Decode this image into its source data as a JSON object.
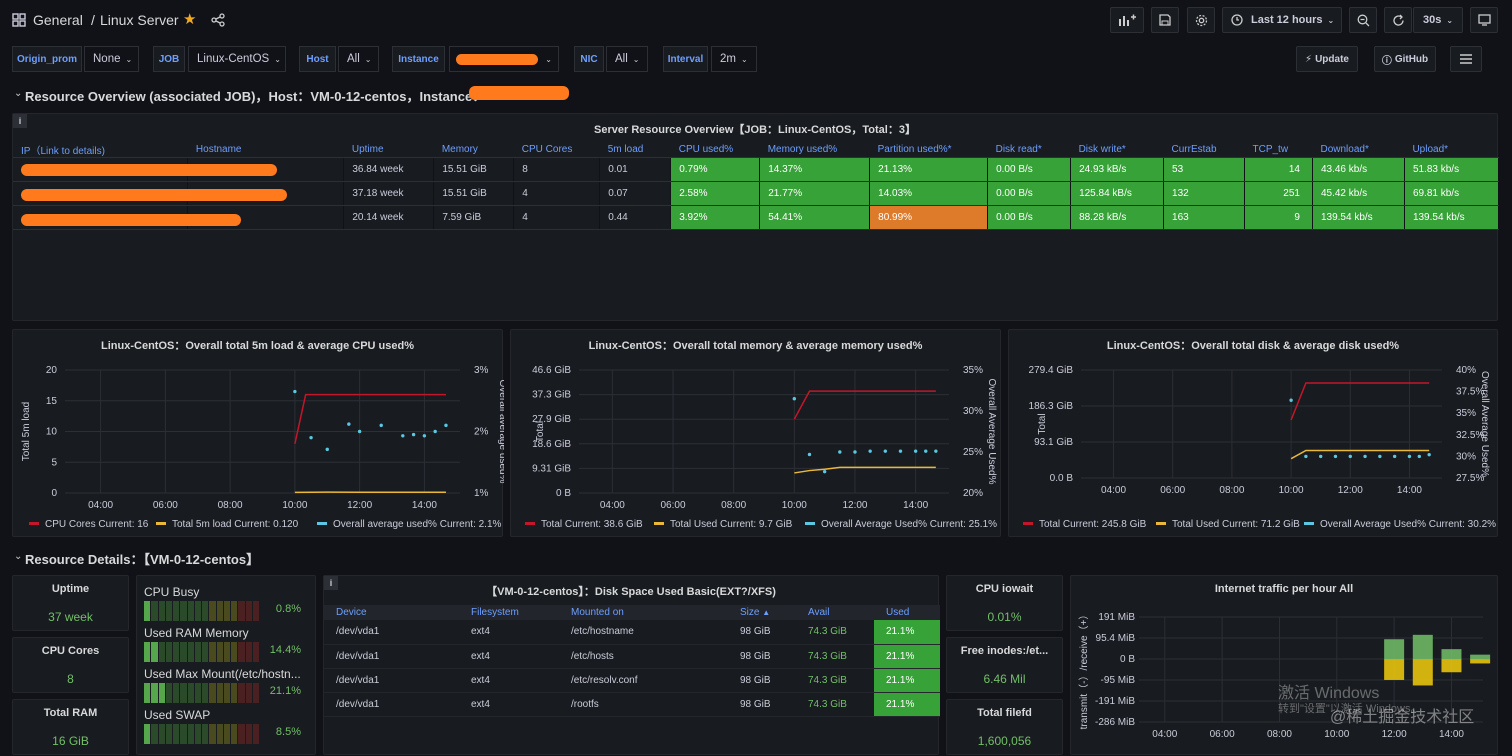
{
  "topbar": {
    "breadcrumb_folder": "General",
    "breadcrumb_sep": "/",
    "breadcrumb_title": "Linux Server",
    "time_range": "Last 12 hours",
    "refresh": "30s"
  },
  "variables": [
    {
      "label": "Origin_prom",
      "value": "None"
    },
    {
      "label": "JOB",
      "value": "Linux-CentOS"
    },
    {
      "label": "Host",
      "value": "All"
    },
    {
      "label": "Instance",
      "value": ""
    },
    {
      "label": "NIC",
      "value": "All"
    },
    {
      "label": "Interval",
      "value": "2m"
    }
  ],
  "links": {
    "update": "Update",
    "github": "GitHub"
  },
  "row1": {
    "title": "Resource Overview (associated JOB)，Host：VM-0-12-centos，Instance："
  },
  "overview": {
    "title": "Server Resource Overview【JOB：Linux-CentOS，Total：3】",
    "columns": [
      "IP（Link to details)",
      "Hostname",
      "Uptime",
      "Memory",
      "CPU Cores",
      "5m load",
      "CPU used%",
      "Memory used%",
      "Partition used%*",
      "Disk read*",
      "Disk write*",
      "CurrEstab",
      "TCP_tw",
      "Download*",
      "Upload*"
    ],
    "rows": [
      [
        "",
        "",
        "36.84 week",
        "15.51 GiB",
        "8",
        "0.01",
        "0.79%",
        "14.37%",
        "21.13%",
        "0.00 B/s",
        "24.93 kB/s",
        "53",
        "14",
        "43.46 kb/s",
        "51.83 kb/s"
      ],
      [
        "",
        "",
        "37.18 week",
        "15.51 GiB",
        "4",
        "0.07",
        "2.58%",
        "21.77%",
        "14.03%",
        "0.00 B/s",
        "125.84 kB/s",
        "132",
        "251",
        "45.42 kb/s",
        "69.81 kb/s"
      ],
      [
        "",
        "",
        "20.14 week",
        "7.59 GiB",
        "4",
        "0.44",
        "3.92%",
        "54.41%",
        "80.99%",
        "0.00 B/s",
        "88.28 kB/s",
        "163",
        "9",
        "139.54 kb/s",
        "139.54 kb/s"
      ]
    ]
  },
  "chart_data": [
    {
      "type": "line",
      "title": "Linux-CentOS：Overall total 5m load & average CPU used%",
      "x_ticks": [
        "04:00",
        "06:00",
        "08:00",
        "10:00",
        "12:00",
        "14:00"
      ],
      "ylabel": "Total 5m load",
      "y_ticks": [
        "20",
        "15",
        "10",
        "5",
        "0"
      ],
      "ylim": [
        0,
        20
      ],
      "y2label": "Overall average used%",
      "y2_ticks": [
        "3%",
        "2%",
        "1%"
      ],
      "y2lim": [
        1,
        3
      ],
      "series": [
        {
          "name": "CPU Cores",
          "color": "#c4162a",
          "axis": "left",
          "x": [
            "10:00",
            "10:20",
            "14:40"
          ],
          "values": [
            8,
            16,
            16
          ],
          "legend": "CPU Cores  Current: 16"
        },
        {
          "name": "Total 5m load",
          "color": "#eab839",
          "axis": "left",
          "x": [
            "10:00",
            "11:00",
            "12:00",
            "14:40"
          ],
          "values": [
            0.1,
            0.15,
            0.12,
            0.12
          ],
          "legend": "Total 5m load  Current: 0.120"
        },
        {
          "name": "Overall average used%",
          "color": "#5ac8e0",
          "axis": "right",
          "dots": true,
          "x": [
            "10:00",
            "10:30",
            "11:00",
            "11:40",
            "12:00",
            "12:40",
            "13:20",
            "13:40",
            "14:00",
            "14:20",
            "14:40"
          ],
          "values": [
            2.65,
            1.9,
            1.71,
            2.12,
            2.0,
            2.1,
            1.93,
            1.95,
            1.93,
            2.0,
            2.1
          ],
          "legend": "Overall average used%  Current: 2.1%"
        }
      ]
    },
    {
      "type": "line",
      "title": "Linux-CentOS：Overall total memory & average memory used%",
      "x_ticks": [
        "04:00",
        "06:00",
        "08:00",
        "10:00",
        "12:00",
        "14:00"
      ],
      "ylabel": "Total",
      "y_ticks": [
        "46.6 GiB",
        "37.3 GiB",
        "27.9 GiB",
        "18.6 GiB",
        "9.31 GiB",
        "0 B"
      ],
      "ylim": [
        0,
        46.6
      ],
      "y2label": "Overall Average Used%",
      "y2_ticks": [
        "35%",
        "30%",
        "25%",
        "20%"
      ],
      "y2lim": [
        20,
        35
      ],
      "series": [
        {
          "name": "Total",
          "color": "#c4162a",
          "axis": "left",
          "x": [
            "10:00",
            "10:30",
            "14:40"
          ],
          "values": [
            28,
            38.6,
            38.6
          ],
          "legend": "Total  Current: 38.6 GiB"
        },
        {
          "name": "Total Used",
          "color": "#eab839",
          "axis": "left",
          "x": [
            "10:00",
            "10:30",
            "11:00",
            "11:30",
            "12:00",
            "14:40"
          ],
          "values": [
            7.6,
            8.5,
            9.0,
            9.7,
            9.7,
            9.7
          ],
          "legend": "Total Used  Current: 9.7 GiB"
        },
        {
          "name": "Overall Average Used%",
          "color": "#5ac8e0",
          "axis": "right",
          "dots": true,
          "x": [
            "10:00",
            "10:30",
            "11:00",
            "11:30",
            "12:00",
            "12:30",
            "13:00",
            "13:30",
            "14:00",
            "14:20",
            "14:40"
          ],
          "values": [
            31.5,
            24.7,
            22.6,
            25.0,
            25.0,
            25.1,
            25.1,
            25.1,
            25.1,
            25.1,
            25.1
          ],
          "legend": "Overall Average Used%  Current: 25.1%"
        }
      ]
    },
    {
      "type": "line",
      "title": "Linux-CentOS：Overall total disk & average disk used%",
      "x_ticks": [
        "04:00",
        "06:00",
        "08:00",
        "10:00",
        "12:00",
        "14:00"
      ],
      "ylabel": "Total",
      "y_ticks": [
        "279.4 GiB",
        "186.3 GiB",
        "93.1 GiB",
        "0.0 B"
      ],
      "ylim": [
        0,
        279.4
      ],
      "y2label": "Overall Average Used%",
      "y2_ticks": [
        "40%",
        "37.5%",
        "35%",
        "32.5%",
        "30%",
        "27.5%"
      ],
      "y2lim": [
        27.5,
        40
      ],
      "series": [
        {
          "name": "Total",
          "color": "#c4162a",
          "axis": "left",
          "x": [
            "10:00",
            "10:30",
            "14:40"
          ],
          "values": [
            150,
            245.8,
            245.8
          ],
          "legend": "Total  Current: 245.8 GiB"
        },
        {
          "name": "Total Used",
          "color": "#eab839",
          "axis": "left",
          "x": [
            "10:00",
            "10:30",
            "14:40"
          ],
          "values": [
            50,
            71.2,
            71.2
          ],
          "legend": "Total Used  Current: 71.2 GiB"
        },
        {
          "name": "Overall Average Used%",
          "color": "#5ac8e0",
          "axis": "right",
          "dots": true,
          "x": [
            "10:00",
            "10:30",
            "11:00",
            "11:30",
            "12:00",
            "12:30",
            "13:00",
            "13:30",
            "14:00",
            "14:20",
            "14:40"
          ],
          "values": [
            36.5,
            30.0,
            30.0,
            30.0,
            30.0,
            30.0,
            30.0,
            30.0,
            30.0,
            30.0,
            30.2
          ],
          "legend": "Overall Average Used%  Current: 30.2%"
        }
      ]
    },
    {
      "type": "bar",
      "title": "Internet traffic per hour All",
      "ylabel": "transmit（-）/receive（+）",
      "y_ticks": [
        "191 MiB",
        "95.4 MiB",
        "0 B",
        "-95 MiB",
        "-191 MiB",
        "-286 MiB"
      ],
      "ylim": [
        -286,
        191
      ],
      "x_ticks": [
        "04:00",
        "06:00",
        "08:00",
        "10:00",
        "12:00",
        "14:00"
      ],
      "bars": [
        {
          "x": "12:00",
          "receive": 90,
          "transmit": -95
        },
        {
          "x": "13:00",
          "receive": 110,
          "transmit": -120
        },
        {
          "x": "14:00",
          "receive": 45,
          "transmit": -60
        },
        {
          "x": "15:00",
          "receive": 20,
          "transmit": -20
        }
      ]
    }
  ],
  "row2": {
    "title": "Resource Details：【VM-0-12-centos】"
  },
  "stats": [
    {
      "label": "Uptime",
      "value": "37 week"
    },
    {
      "label": "CPU Cores",
      "value": "8"
    },
    {
      "label": "Total RAM",
      "value": "16 GiB"
    }
  ],
  "bargauges": [
    {
      "label": "CPU Busy",
      "value": "0.8%",
      "fraction": 0.008
    },
    {
      "label": "Used RAM Memory",
      "value": "14.4%",
      "fraction": 0.144
    },
    {
      "label": "Used Max Mount(/etc/hostn...",
      "value": "21.1%",
      "fraction": 0.211
    },
    {
      "label": "Used SWAP",
      "value": "8.5%",
      "fraction": 0.085
    }
  ],
  "disk": {
    "title": "【VM-0-12-centos】：Disk Space Used Basic(EXT?/XFS)",
    "columns": [
      "Device",
      "Filesystem",
      "Mounted on",
      "Size",
      "Avail",
      "Used"
    ],
    "sort_icon": "sort-ascending-icon",
    "rows": [
      [
        "/dev/vda1",
        "ext4",
        "/etc/hostname",
        "98 GiB",
        "74.3 GiB",
        "21.1%"
      ],
      [
        "/dev/vda1",
        "ext4",
        "/etc/hosts",
        "98 GiB",
        "74.3 GiB",
        "21.1%"
      ],
      [
        "/dev/vda1",
        "ext4",
        "/etc/resolv.conf",
        "98 GiB",
        "74.3 GiB",
        "21.1%"
      ],
      [
        "/dev/vda1",
        "ext4",
        "/rootfs",
        "98 GiB",
        "74.3 GiB",
        "21.1%"
      ]
    ]
  },
  "stats2": [
    {
      "label": "CPU iowait",
      "value": "0.01%"
    },
    {
      "label": "Free inodes:/et...",
      "value": "6.46 Mil"
    },
    {
      "label": "Total filefd",
      "value": "1,600,056"
    }
  ],
  "watermark": {
    "line1": "激活 Windows",
    "line2": "转到\"设置\"以激活 Windows。",
    "line3": "@稀土掘金技术社区"
  },
  "colors": {
    "green": "#37a237",
    "orange": "#de7b2b",
    "blue": "#6e9fff",
    "bg": "#111217",
    "panel": "#181b1f"
  }
}
